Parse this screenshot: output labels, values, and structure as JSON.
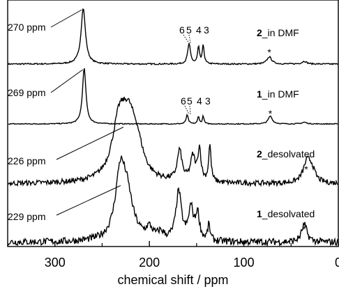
{
  "chart_data": {
    "type": "line",
    "xlabel": "chemical shift / ppm",
    "xlim": [
      350,
      0
    ],
    "reversed_x": true,
    "ticks": [
      "300",
      "200",
      "100",
      "0"
    ],
    "tick_values": [
      300,
      200,
      100,
      0
    ],
    "minor_tick_values": [
      350,
      250,
      150,
      50
    ],
    "y_axis_shown": false,
    "series": [
      {
        "compound": "2",
        "condition": "_in DMF",
        "peak_label": "270 ppm",
        "peak_ppm": 270,
        "site_labels": [
          "6",
          "5",
          "4",
          "3"
        ],
        "starred_peak_ppm": 73,
        "peaks": [
          {
            "ppm": 270,
            "height": 1.0,
            "width": 2.8
          },
          {
            "ppm": 158,
            "height": 0.36,
            "width": 1.8
          },
          {
            "ppm": 148,
            "height": 0.3,
            "width": 1.2
          },
          {
            "ppm": 143,
            "height": 0.33,
            "width": 1.2
          },
          {
            "ppm": 73,
            "height": 0.13,
            "width": 3.0
          },
          {
            "ppm": 36,
            "height": 0.05,
            "width": 3.0
          }
        ],
        "noise": 0.012
      },
      {
        "compound": "1",
        "condition": "_in DMF",
        "peak_label": "269 ppm",
        "peak_ppm": 269,
        "site_labels": [
          "6",
          "5",
          "4",
          "3"
        ],
        "starred_peak_ppm": 72,
        "peaks": [
          {
            "ppm": 269,
            "height": 1.0,
            "width": 2.2
          },
          {
            "ppm": 160,
            "height": 0.16,
            "width": 1.4
          },
          {
            "ppm": 148,
            "height": 0.14,
            "width": 1.0
          },
          {
            "ppm": 143,
            "height": 0.14,
            "width": 1.0
          },
          {
            "ppm": 72,
            "height": 0.14,
            "width": 2.6
          },
          {
            "ppm": 36,
            "height": 0.03,
            "width": 3.0
          }
        ],
        "noise": 0.008
      },
      {
        "compound": "2",
        "condition": "_desolvated",
        "peak_label": "226 ppm",
        "peak_ppm": 226,
        "site_labels": [],
        "starred_peak_ppm": 34,
        "peaks": [
          {
            "ppm": 232,
            "height": 0.62,
            "width": 9
          },
          {
            "ppm": 222,
            "height": 0.55,
            "width": 9
          },
          {
            "ppm": 213,
            "height": 0.3,
            "width": 8
          },
          {
            "ppm": 168,
            "height": 0.35,
            "width": 3
          },
          {
            "ppm": 154,
            "height": 0.28,
            "width": 3
          },
          {
            "ppm": 147,
            "height": 0.37,
            "width": 2
          },
          {
            "ppm": 136,
            "height": 0.42,
            "width": 1.5
          },
          {
            "ppm": 33,
            "height": 0.24,
            "width": 5
          },
          {
            "ppm": 28,
            "height": 0.12,
            "width": 4
          }
        ],
        "noise": 0.03
      },
      {
        "compound": "1",
        "condition": "_desolvated",
        "peak_label": "229 ppm",
        "peak_ppm": 229,
        "site_labels": [],
        "starred_peak_ppm": 36,
        "peaks": [
          {
            "ppm": 231,
            "height": 0.66,
            "width": 6
          },
          {
            "ppm": 224,
            "height": 0.5,
            "width": 8
          },
          {
            "ppm": 200,
            "height": 0.12,
            "width": 4
          },
          {
            "ppm": 188,
            "height": 0.08,
            "width": 4
          },
          {
            "ppm": 169,
            "height": 0.56,
            "width": 3.5
          },
          {
            "ppm": 156,
            "height": 0.36,
            "width": 3
          },
          {
            "ppm": 149,
            "height": 0.3,
            "width": 2.5
          },
          {
            "ppm": 137,
            "height": 0.18,
            "width": 1.5
          },
          {
            "ppm": 36,
            "height": 0.2,
            "width": 3.5
          }
        ],
        "noise": 0.04
      }
    ]
  }
}
